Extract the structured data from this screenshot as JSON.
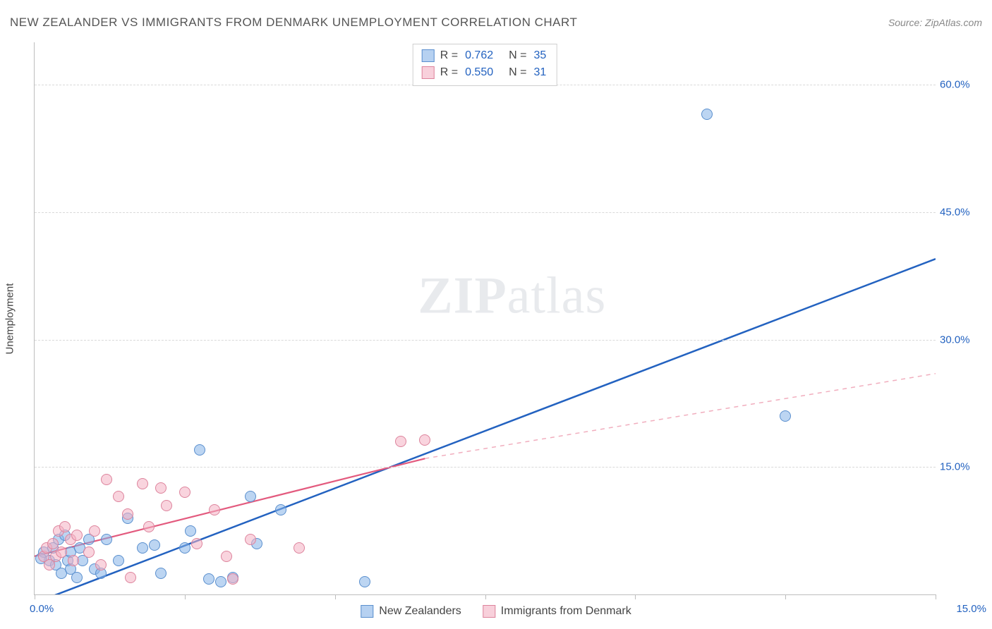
{
  "header": {
    "title": "NEW ZEALANDER VS IMMIGRANTS FROM DENMARK UNEMPLOYMENT CORRELATION CHART",
    "source": "Source: ZipAtlas.com"
  },
  "watermark": {
    "bold": "ZIP",
    "rest": "atlas"
  },
  "chart": {
    "type": "scatter",
    "ylabel": "Unemployment",
    "xlim": [
      0,
      15
    ],
    "ylim": [
      0,
      65
    ],
    "ytick_values": [
      15,
      30,
      45,
      60
    ],
    "ytick_labels": [
      "15.0%",
      "30.0%",
      "45.0%",
      "60.0%"
    ],
    "xtick_values": [
      0,
      2.5,
      5.0,
      7.5,
      10.0,
      12.5,
      15.0
    ],
    "xtick_label_left": "0.0%",
    "xtick_label_right": "15.0%",
    "grid_color": "#d9d9d9",
    "background_color": "#ffffff",
    "series": [
      {
        "id": "s1",
        "label": "New Zealanders",
        "marker_fill": "rgba(133,178,232,0.55)",
        "marker_stroke": "#5a8fce",
        "marker_size": 16,
        "r": 0.762,
        "n": 35,
        "trend": {
          "x1": 0,
          "y1": -1,
          "x2": 15,
          "y2": 39.5,
          "stroke": "#2362c0",
          "width": 2.5,
          "dash": "none"
        },
        "points": [
          [
            0.15,
            5.0
          ],
          [
            0.25,
            4.0
          ],
          [
            0.3,
            5.5
          ],
          [
            0.35,
            3.5
          ],
          [
            0.4,
            6.5
          ],
          [
            0.45,
            2.5
          ],
          [
            0.5,
            7.0
          ],
          [
            0.55,
            4.0
          ],
          [
            0.6,
            5.0
          ],
          [
            0.6,
            3.0
          ],
          [
            0.7,
            2.0
          ],
          [
            0.75,
            5.5
          ],
          [
            0.8,
            4.0
          ],
          [
            0.9,
            6.5
          ],
          [
            1.0,
            3.0
          ],
          [
            1.1,
            2.5
          ],
          [
            1.2,
            6.5
          ],
          [
            1.4,
            4.0
          ],
          [
            1.55,
            9.0
          ],
          [
            1.8,
            5.5
          ],
          [
            2.0,
            5.8
          ],
          [
            2.1,
            2.5
          ],
          [
            2.5,
            5.5
          ],
          [
            2.6,
            7.5
          ],
          [
            2.75,
            17.0
          ],
          [
            2.9,
            1.8
          ],
          [
            3.1,
            1.5
          ],
          [
            3.6,
            11.5
          ],
          [
            3.3,
            2.0
          ],
          [
            3.7,
            6.0
          ],
          [
            4.1,
            10.0
          ],
          [
            5.5,
            1.5
          ],
          [
            11.2,
            56.5
          ],
          [
            12.5,
            21.0
          ],
          [
            0.1,
            4.2
          ]
        ]
      },
      {
        "id": "s2",
        "label": "Immigrants from Denmark",
        "marker_fill": "rgba(244,177,195,0.55)",
        "marker_stroke": "#dd839c",
        "marker_size": 16,
        "r": 0.55,
        "n": 31,
        "trend": {
          "x1": 0,
          "y1": 4.5,
          "x2": 6.5,
          "y2": 16.0,
          "stroke": "#e35a7e",
          "width": 2.2,
          "dash": "none",
          "ext_x2": 15,
          "ext_y2": 26.0,
          "ext_dash": "6 6",
          "ext_stroke": "#f1aebe"
        },
        "points": [
          [
            0.15,
            4.5
          ],
          [
            0.2,
            5.5
          ],
          [
            0.25,
            3.5
          ],
          [
            0.3,
            6.0
          ],
          [
            0.35,
            4.5
          ],
          [
            0.4,
            7.5
          ],
          [
            0.45,
            5.0
          ],
          [
            0.5,
            8.0
          ],
          [
            0.6,
            6.5
          ],
          [
            0.65,
            4.0
          ],
          [
            0.7,
            7.0
          ],
          [
            0.9,
            5.0
          ],
          [
            1.0,
            7.5
          ],
          [
            1.1,
            3.5
          ],
          [
            1.2,
            13.5
          ],
          [
            1.4,
            11.5
          ],
          [
            1.6,
            2.0
          ],
          [
            1.8,
            13.0
          ],
          [
            1.9,
            8.0
          ],
          [
            2.1,
            12.5
          ],
          [
            2.2,
            10.5
          ],
          [
            2.5,
            12.0
          ],
          [
            2.7,
            6.0
          ],
          [
            3.0,
            10.0
          ],
          [
            3.2,
            4.5
          ],
          [
            3.3,
            1.8
          ],
          [
            3.6,
            6.5
          ],
          [
            4.4,
            5.5
          ],
          [
            6.1,
            18.0
          ],
          [
            6.5,
            18.2
          ],
          [
            1.55,
            9.5
          ]
        ]
      }
    ]
  },
  "legend_top": {
    "rows": [
      {
        "swatch": "s1",
        "r_label": "R  =",
        "r_val": "0.762",
        "n_label": "N  =",
        "n_val": "35"
      },
      {
        "swatch": "s2",
        "r_label": "R  =",
        "r_val": "0.550",
        "n_label": "N  =",
        "n_val": "31"
      }
    ]
  },
  "legend_bottom": {
    "items": [
      {
        "swatch": "s1",
        "label": "New Zealanders"
      },
      {
        "swatch": "s2",
        "label": "Immigrants from Denmark"
      }
    ]
  }
}
